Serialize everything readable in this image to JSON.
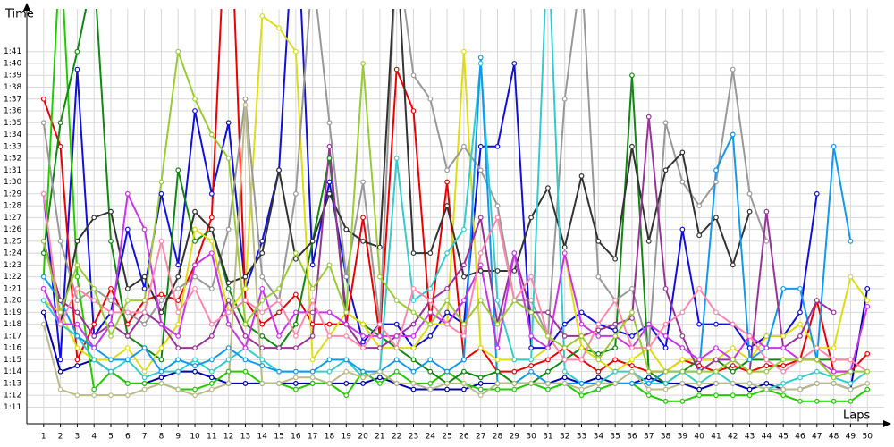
{
  "chart_data": {
    "type": "line",
    "y_title": "Time",
    "x_title": "Laps",
    "x": [
      1,
      2,
      3,
      4,
      5,
      6,
      7,
      8,
      9,
      10,
      11,
      12,
      13,
      14,
      15,
      16,
      17,
      18,
      19,
      20,
      21,
      22,
      23,
      24,
      25,
      26,
      27,
      28,
      29,
      30,
      31,
      32,
      33,
      34,
      35,
      36,
      37,
      38,
      39,
      40,
      41,
      42,
      43,
      44,
      45,
      46,
      47,
      48,
      49,
      50
    ],
    "xlim": [
      0,
      51
    ],
    "xticks": [
      1,
      2,
      3,
      4,
      5,
      6,
      7,
      8,
      9,
      10,
      11,
      12,
      13,
      14,
      15,
      16,
      17,
      18,
      19,
      20,
      21,
      22,
      23,
      24,
      25,
      26,
      27,
      28,
      29,
      30,
      31,
      32,
      33,
      34,
      35,
      36,
      37,
      38,
      39,
      40,
      41,
      42,
      43,
      44,
      45,
      46,
      47,
      48,
      49,
      50
    ],
    "ylim": [
      69.6,
      104.6
    ],
    "yticks": [
      {
        "value": 71,
        "label": "1:11"
      },
      {
        "value": 72,
        "label": "1:12"
      },
      {
        "value": 73,
        "label": "1:13"
      },
      {
        "value": 74,
        "label": "1:14"
      },
      {
        "value": 75,
        "label": "1:15"
      },
      {
        "value": 76,
        "label": "1:16"
      },
      {
        "value": 77,
        "label": "1:17"
      },
      {
        "value": 78,
        "label": "1:18"
      },
      {
        "value": 79,
        "label": "1:19"
      },
      {
        "value": 80,
        "label": "1:20"
      },
      {
        "value": 81,
        "label": "1:21"
      },
      {
        "value": 82,
        "label": "1:22"
      },
      {
        "value": 83,
        "label": "1:23"
      },
      {
        "value": 84,
        "label": "1:24"
      },
      {
        "value": 85,
        "label": "1:25"
      },
      {
        "value": 86,
        "label": "1:26"
      },
      {
        "value": 87,
        "label": "1:27"
      },
      {
        "value": 88,
        "label": "1:28"
      },
      {
        "value": 89,
        "label": "1:29"
      },
      {
        "value": 90,
        "label": "1:30"
      },
      {
        "value": 91,
        "label": "1:31"
      },
      {
        "value": 92,
        "label": "1:32"
      },
      {
        "value": 93,
        "label": "1:33"
      },
      {
        "value": 94,
        "label": "1:34"
      },
      {
        "value": 95,
        "label": "1:35"
      },
      {
        "value": 96,
        "label": "1:36"
      },
      {
        "value": 97,
        "label": "1:37"
      },
      {
        "value": 98,
        "label": "1:38"
      },
      {
        "value": 99,
        "label": "1:39"
      },
      {
        "value": 100,
        "label": "1:40"
      },
      {
        "value": 101,
        "label": "1:41"
      }
    ],
    "grid": true,
    "series": [
      {
        "color": "#0000aa",
        "values": [
          79,
          74,
          74.5,
          75,
          74,
          73,
          73,
          73.5,
          74,
          74,
          73.5,
          73,
          73,
          73,
          73,
          73,
          73,
          73,
          73,
          73,
          73.5,
          73,
          72.5,
          72.5,
          72.5,
          72.5,
          73,
          73,
          73,
          73,
          73,
          73.5,
          73,
          73.5,
          73,
          73,
          73.5,
          73,
          73,
          72.5,
          73,
          73,
          72.5,
          73,
          72.5,
          72.5,
          73,
          73,
          72.5,
          81
        ]
      },
      {
        "color": "#1010dd",
        "values": [
          89,
          75,
          99.5,
          77,
          79,
          86,
          81,
          89,
          83,
          96,
          89,
          95,
          81,
          85,
          91,
          115,
          83,
          90,
          82,
          76.5,
          78,
          78,
          76,
          77,
          79,
          78,
          93,
          93,
          100,
          76,
          76,
          78,
          79,
          78,
          77.5,
          77,
          78,
          76,
          86,
          78,
          78,
          78,
          76,
          77,
          77,
          79,
          89,
          null,
          null,
          null
        ]
      },
      {
        "color": "#ee0000",
        "values": [
          97,
          93,
          75,
          78,
          81,
          78,
          80,
          80.5,
          80,
          83,
          87,
          118,
          80,
          78,
          79,
          80.5,
          78,
          78,
          78,
          87,
          77,
          99.5,
          96,
          78,
          90,
          75,
          76,
          74,
          74,
          74.5,
          75,
          76,
          75,
          74,
          75,
          74.5,
          74,
          74,
          75,
          74.5,
          74,
          74.5,
          74,
          74.5,
          74.5,
          75,
          80,
          74,
          74,
          75.5
        ]
      },
      {
        "color": "#22cc00",
        "values": [
          82,
          110,
          82,
          72.5,
          74,
          73,
          73,
          73,
          72.5,
          72.5,
          73,
          74,
          74,
          73,
          73,
          72.5,
          73,
          73,
          72,
          74,
          73,
          74,
          73,
          73,
          74,
          73,
          72.5,
          72.5,
          72.5,
          73,
          72.5,
          73,
          72,
          72.5,
          73,
          73,
          72,
          71.5,
          71.5,
          72,
          72,
          72,
          72,
          72.5,
          72,
          71.5,
          71.5,
          71.5,
          71.5,
          72.5
        ]
      },
      {
        "color": "#118811",
        "values": [
          84,
          95,
          101,
          108,
          85,
          77,
          76,
          75,
          91,
          85,
          86,
          81,
          78,
          77,
          76,
          78,
          85,
          92,
          79,
          78,
          77,
          76,
          75,
          74,
          73,
          74,
          73.5,
          74,
          73,
          73,
          74,
          75,
          76,
          75.5,
          76,
          99,
          74,
          73,
          74,
          75,
          75,
          74,
          75,
          75,
          75,
          75,
          75,
          75,
          75,
          null
        ]
      },
      {
        "color": "#dddd11",
        "values": [
          80,
          79,
          76,
          75,
          75,
          76,
          74,
          76,
          78,
          86,
          85,
          79,
          81,
          104,
          103,
          101,
          75,
          77,
          79,
          78,
          76,
          76,
          76,
          78,
          78,
          101,
          76,
          75,
          75,
          75,
          76,
          84,
          76,
          75,
          74,
          75,
          76,
          74,
          75,
          75,
          75,
          76,
          75,
          77,
          77,
          78,
          76,
          76,
          82,
          80
        ]
      },
      {
        "color": "#999999",
        "values": [
          95,
          85,
          80,
          81,
          80,
          79,
          78,
          80,
          81,
          82,
          81,
          86,
          97,
          82,
          80,
          89,
          108,
          95,
          82,
          90,
          78,
          110,
          99,
          97,
          91,
          93,
          91,
          88,
          80,
          80,
          77,
          97,
          108,
          82,
          80,
          81,
          76,
          95,
          90,
          88,
          90,
          99.5,
          89,
          85,
          null,
          null,
          null,
          null,
          null,
          null
        ]
      },
      {
        "color": "#333333",
        "values": [
          81,
          78,
          85,
          87,
          87.5,
          81,
          82,
          79,
          82,
          87.5,
          86,
          81.5,
          82,
          84,
          91,
          83.5,
          85,
          89,
          86,
          85,
          84.5,
          110,
          84,
          84,
          88,
          82,
          82.5,
          82.5,
          82.5,
          87,
          89.5,
          84.5,
          90.5,
          85,
          83.5,
          93,
          85,
          91,
          92.5,
          85.5,
          87,
          83,
          87.5,
          null,
          null,
          null,
          null,
          null,
          null,
          null
        ]
      },
      {
        "color": "#33cccc",
        "values": [
          80,
          78,
          77,
          75,
          74,
          75,
          73.5,
          74,
          74,
          75,
          74,
          75,
          76,
          75,
          74,
          74,
          74,
          74,
          75,
          73.5,
          74,
          92,
          80,
          81,
          84,
          86,
          100,
          80,
          75,
          75,
          111,
          74,
          73,
          73,
          74,
          74,
          73,
          73,
          74,
          73,
          74,
          73,
          73,
          72.5,
          73,
          73.5,
          74,
          73.5,
          73,
          74
        ]
      },
      {
        "color": "#1199ee",
        "values": [
          82,
          80,
          77,
          76,
          75,
          75,
          76,
          74,
          75,
          74.5,
          75,
          76,
          75,
          74.5,
          74,
          74,
          74,
          75,
          75,
          74,
          74,
          75,
          74,
          75,
          74,
          75,
          100.5,
          73,
          73,
          74,
          73,
          73,
          73,
          73,
          73,
          73,
          73,
          74,
          74,
          74,
          91,
          94,
          75,
          76,
          81,
          81,
          75,
          93,
          85,
          null
        ]
      },
      {
        "color": "#993399",
        "values": [
          85,
          80,
          79,
          77,
          78,
          77,
          79,
          78,
          76,
          76,
          77,
          80,
          77,
          76,
          76,
          76,
          77,
          93,
          78,
          76,
          76,
          77,
          78,
          80,
          81,
          83,
          87,
          78,
          84,
          79,
          79,
          77,
          77,
          77.5,
          78,
          78.5,
          95.5,
          81,
          77,
          74,
          75,
          75,
          74,
          87.5,
          76,
          77,
          80,
          79,
          null,
          null
        ]
      },
      {
        "color": "#cc33ee",
        "values": [
          81,
          78,
          78,
          76,
          78,
          89,
          86,
          78,
          77,
          83,
          84,
          78,
          76,
          81,
          77,
          79,
          79,
          79,
          78,
          77,
          77,
          77,
          77,
          79,
          78,
          80,
          83,
          76,
          84,
          77,
          76,
          84,
          78,
          77,
          77,
          76,
          78,
          77,
          76,
          75,
          76,
          75,
          77,
          76,
          76,
          75,
          75,
          74,
          74,
          79.5
        ]
      },
      {
        "color": "#ff88aa",
        "values": [
          89,
          78,
          81,
          80,
          79,
          79,
          79,
          85,
          79,
          81,
          78,
          79,
          80,
          79,
          80,
          77,
          80,
          77,
          77,
          76,
          78,
          76,
          81,
          80,
          78,
          77,
          84,
          87,
          80,
          82,
          77,
          75,
          75,
          78,
          80,
          76,
          76,
          78,
          79,
          81,
          79,
          78,
          77,
          75,
          74,
          75,
          76,
          75,
          75,
          74
        ]
      },
      {
        "color": "#99cc33",
        "values": [
          85,
          79,
          83,
          81,
          77,
          80,
          80,
          90,
          101,
          97,
          94,
          92,
          78,
          80,
          81,
          84,
          81,
          83,
          79,
          100,
          82,
          80,
          79,
          78,
          80,
          78,
          80,
          78,
          80,
          79,
          77,
          76,
          77,
          75,
          77,
          79,
          74,
          74,
          74,
          74,
          74,
          75,
          74,
          74,
          75,
          75,
          75,
          73.5,
          74,
          74
        ]
      },
      {
        "color": "#bbbb88",
        "values": [
          78,
          72.5,
          72,
          72,
          72,
          72,
          72.5,
          73,
          72.5,
          72,
          72.5,
          73,
          96.5,
          73,
          73,
          73.5,
          73.5,
          73,
          74,
          73.5,
          74,
          73,
          73,
          72.5,
          73,
          73,
          72,
          73,
          73,
          73,
          73,
          73,
          72.5,
          73,
          73,
          74,
          72.5,
          72.5,
          73,
          73,
          73,
          73,
          73,
          72.5,
          72.5,
          72.5,
          73,
          73,
          72.5,
          73
        ]
      }
    ]
  }
}
